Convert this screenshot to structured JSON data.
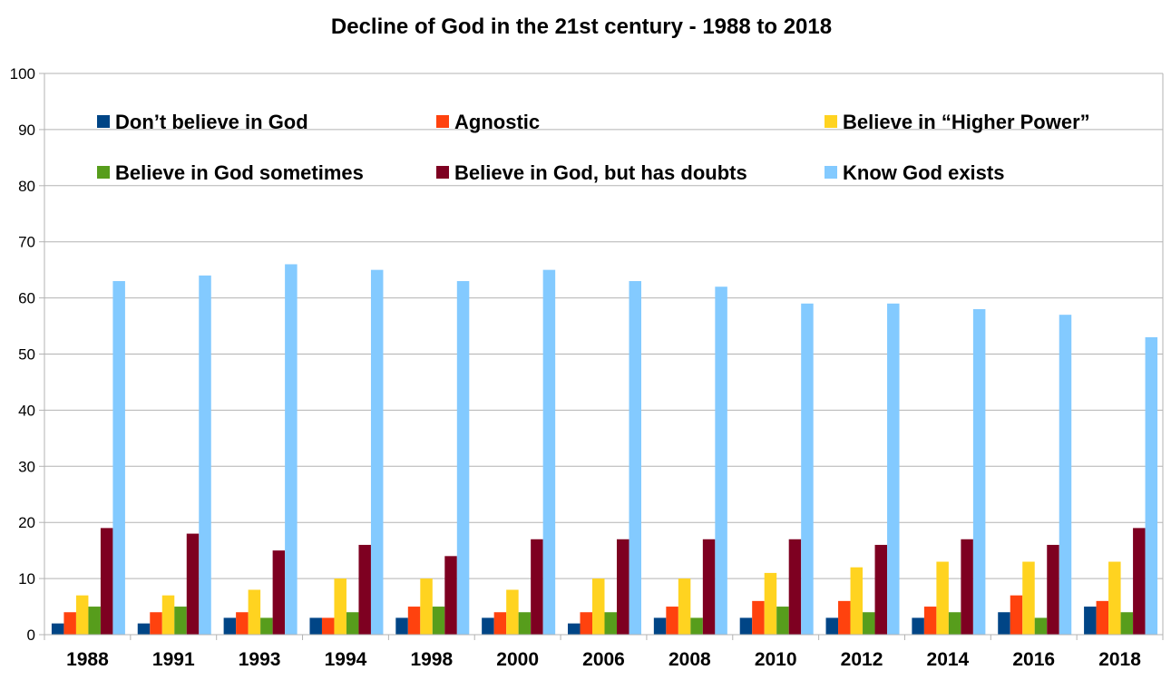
{
  "chart_data": {
    "type": "bar",
    "title": "Decline of God in the 21st century - 1988 to 2018",
    "xlabel": "",
    "ylabel": "",
    "ylim": [
      0,
      100
    ],
    "yticks": [
      0,
      10,
      20,
      30,
      40,
      50,
      60,
      70,
      80,
      90,
      100
    ],
    "grid": "horizontal",
    "legend_position": "top, inside plot",
    "categories": [
      "1988",
      "1991",
      "1993",
      "1994",
      "1998",
      "2000",
      "2006",
      "2008",
      "2010",
      "2012",
      "2014",
      "2016",
      "2018"
    ],
    "series": [
      {
        "name": "Don’t believe in God",
        "color": "#004586",
        "values": [
          2,
          2,
          3,
          3,
          3,
          3,
          2,
          3,
          3,
          3,
          3,
          4,
          5
        ]
      },
      {
        "name": "Agnostic",
        "color": "#ff420e",
        "values": [
          4,
          4,
          4,
          3,
          5,
          4,
          4,
          5,
          6,
          6,
          5,
          7,
          6
        ]
      },
      {
        "name": "Believe in “Higher Power”",
        "color": "#ffd320",
        "values": [
          7,
          7,
          8,
          10,
          10,
          8,
          10,
          10,
          11,
          12,
          13,
          13,
          13
        ]
      },
      {
        "name": "Believe in God sometimes",
        "color": "#579d1c",
        "values": [
          5,
          5,
          3,
          4,
          5,
          4,
          4,
          3,
          5,
          4,
          4,
          3,
          4
        ]
      },
      {
        "name": "Believe in God, but has doubts",
        "color": "#7e0021",
        "values": [
          19,
          18,
          15,
          16,
          14,
          17,
          17,
          17,
          17,
          16,
          17,
          16,
          19
        ]
      },
      {
        "name": "Know God exists",
        "color": "#83caff",
        "values": [
          63,
          64,
          66,
          65,
          63,
          65,
          63,
          62,
          59,
          59,
          58,
          57,
          53
        ]
      }
    ]
  }
}
